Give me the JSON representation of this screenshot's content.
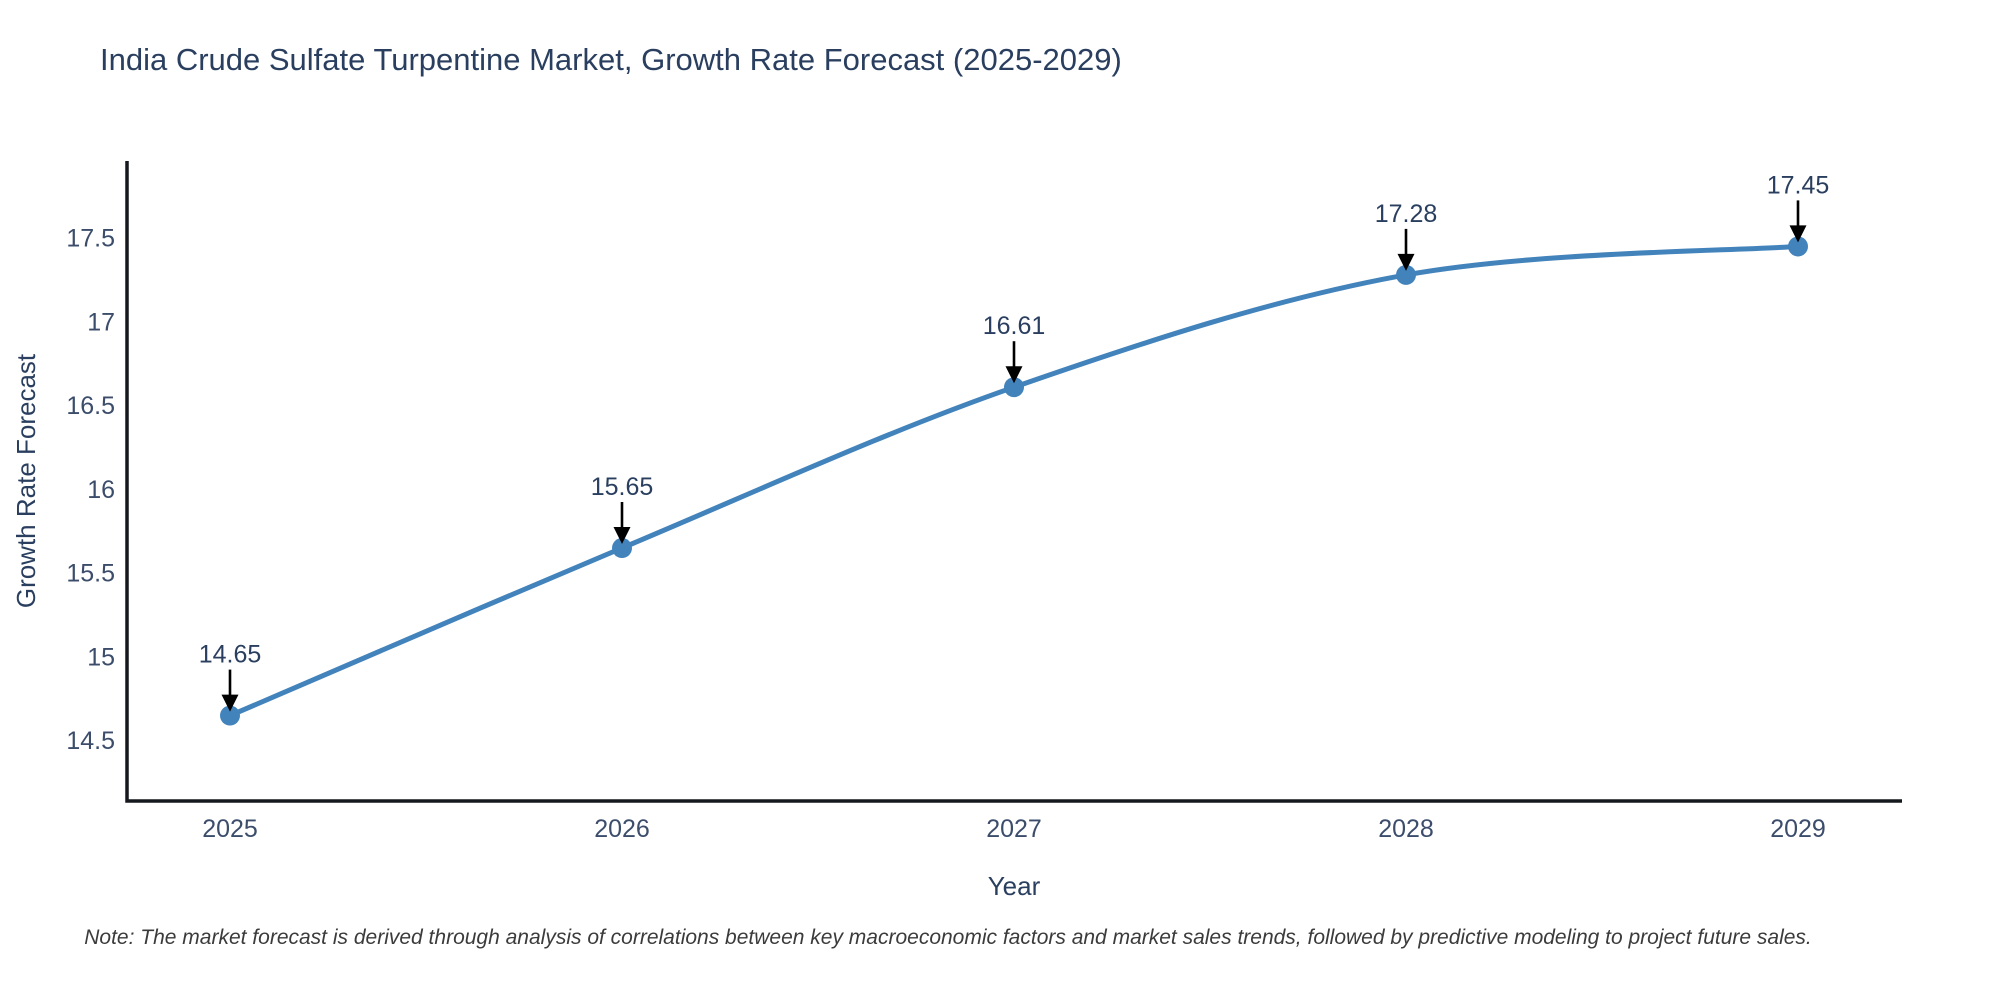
{
  "chart_data": {
    "type": "line",
    "title": "India Crude Sulfate Turpentine Market, Growth Rate Forecast (2025-2029)",
    "xlabel": "Year",
    "ylabel": "Growth Rate Forecast",
    "x": [
      2025,
      2026,
      2027,
      2028,
      2029
    ],
    "series": [
      {
        "name": "Growth Rate Forecast",
        "values": [
          14.65,
          15.65,
          16.61,
          17.28,
          17.45
        ]
      }
    ],
    "point_labels": [
      "14.65",
      "15.65",
      "16.61",
      "17.28",
      "17.45"
    ],
    "xtick_labels": [
      "2025",
      "2026",
      "2027",
      "2028",
      "2029"
    ],
    "ytick_values": [
      14.5,
      15,
      15.5,
      16,
      16.5,
      17,
      17.5
    ],
    "ytick_labels": [
      "14.5",
      "15",
      "15.5",
      "16",
      "16.5",
      "17",
      "17.5"
    ],
    "ylim": [
      14.14,
      17.96
    ],
    "line_shape": "spline",
    "grid": false,
    "legend": "none",
    "annotation_style": "value label with downward black arrow at each point",
    "colors": {
      "line": "#4383bc",
      "marker": "#4383bc",
      "axis": "#15181d",
      "text": "#2a3f5f",
      "tick_text": "#3c4d6b",
      "arrow": "#000000",
      "note_text": "#3b3b3b",
      "background": "#ffffff"
    },
    "note": "Note: The market forecast is derived through analysis of correlations between key macroeconomic factors and market sales trends, followed by predictive modeling to project future sales."
  }
}
